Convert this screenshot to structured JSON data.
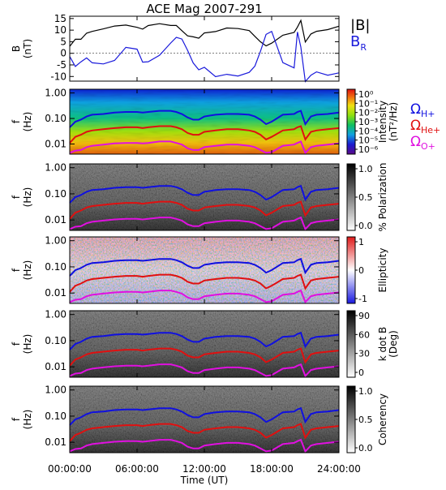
{
  "title": "ACE Mag 2007-291",
  "x_axis": {
    "label": "Time (UT)",
    "ticks": [
      "00:00:00",
      "06:00:00",
      "12:00:00",
      "18:00:00",
      "24:00:00"
    ],
    "tick_hours": [
      0,
      6,
      12,
      18,
      24
    ],
    "range_hours": [
      0,
      24
    ]
  },
  "legend": {
    "B_label": "|B|",
    "BR_label": "B",
    "BR_sub": "R",
    "H_label": "Ω",
    "H_sub": "H+",
    "He_label": "Ω",
    "He_sub": "He+",
    "O_label": "Ω",
    "O_sub": "O+"
  },
  "colors": {
    "B": "#000000",
    "BR": "#1a1adb",
    "H": "#1010e0",
    "He": "#e01010",
    "O": "#e010e0"
  },
  "panels": [
    {
      "id": "mag",
      "ylabel": "B",
      "yunit": "(nT)",
      "yticks": [
        "15",
        "10",
        "5",
        "0",
        "-5",
        "-10"
      ],
      "ytick_values": [
        15,
        10,
        5,
        0,
        -5,
        -10
      ],
      "yrange": [
        -12,
        16
      ]
    },
    {
      "id": "intensity",
      "ylabel": "f",
      "yunit": "(Hz)",
      "yticks": [
        "1.00",
        "0.10",
        "0.01"
      ],
      "cbar_label": "Intensity",
      "cbar_unit": "(nT²/Hz)",
      "cbar_ticks": [
        "10⁰",
        "10⁻¹",
        "10⁻²",
        "10⁻³",
        "10⁻⁴",
        "10⁻⁵",
        "10⁻⁶"
      ],
      "cmap": "rainbow"
    },
    {
      "id": "polarization",
      "ylabel": "f",
      "yunit": "(Hz)",
      "yticks": [
        "1.00",
        "0.10",
        "0.01"
      ],
      "cbar_label": "% Polarization",
      "cbar_ticks": [
        "1.0",
        "0.5",
        "0.0"
      ],
      "cmap": "gray"
    },
    {
      "id": "ellipticity",
      "ylabel": "f",
      "yunit": "(Hz)",
      "yticks": [
        "1.00",
        "0.10",
        "0.01"
      ],
      "cbar_label": "Ellipticity",
      "cbar_ticks": [
        "1",
        "0",
        "-1"
      ],
      "cmap": "bwr"
    },
    {
      "id": "kdotb",
      "ylabel": "f",
      "yunit": "(Hz)",
      "yticks": [
        "1.00",
        "0.10",
        "0.01"
      ],
      "cbar_label": "k dot B",
      "cbar_unit": "(Deg)",
      "cbar_ticks": [
        "90",
        "60",
        "30",
        "0"
      ],
      "cmap": "gray"
    },
    {
      "id": "coherency",
      "ylabel": "f",
      "yunit": "(Hz)",
      "yticks": [
        "1.00",
        "0.10",
        "0.01"
      ],
      "cbar_label": "Coherency",
      "cbar_ticks": [
        "1.0",
        "0.5",
        "0.0"
      ],
      "cmap": "gray"
    }
  ],
  "chart_data": {
    "type": "line",
    "title": "ACE Mag 2007-291",
    "xlabel": "Time (UT)",
    "xlim_hours": [
      0,
      24
    ],
    "panels": [
      {
        "panel": "mag",
        "ylabel": "B (nT)",
        "ylim": [
          -12,
          16
        ],
        "series": [
          {
            "name": "|B|",
            "x_hours": [
              0,
              0.5,
              1,
              1.5,
              2,
              3,
              4,
              5,
              6,
              6.5,
              7,
              8,
              9,
              9.5,
              10,
              10.5,
              11,
              11.5,
              12,
              13,
              14,
              15,
              16,
              16.5,
              17,
              17.5,
              18,
              19,
              20,
              20.3,
              20.6,
              21,
              21.5,
              22,
              23,
              24
            ],
            "values": [
              3,
              5,
              6,
              8,
              9,
              10,
              11,
              12,
              12,
              11,
              12,
              13,
              13,
              12,
              10,
              7,
              6,
              6,
              8,
              9,
              10,
              10,
              9,
              8,
              6,
              4,
              5,
              9,
              10,
              12,
              13,
              4,
              8,
              9,
              10,
              11
            ]
          },
          {
            "name": "B_R",
            "x_hours": [
              0,
              0.5,
              1,
              1.5,
              2,
              3,
              4,
              5,
              6,
              6.5,
              7,
              8,
              9,
              9.5,
              10,
              10.5,
              11,
              11.5,
              12,
              13,
              14,
              15,
              16,
              16.5,
              17,
              17.5,
              18,
              19,
              20,
              20.3,
              20.6,
              21,
              21.5,
              22,
              23,
              24
            ],
            "values": [
              -2,
              -5,
              -3,
              -1,
              -3,
              -4,
              -2,
              3,
              1,
              -5,
              -4,
              -2,
              4,
              6,
              5,
              2,
              -4,
              -7,
              -6,
              -9,
              -9,
              -9,
              -8,
              -6,
              0,
              7,
              9,
              -5,
              -7,
              8,
              3,
              -11,
              -9,
              -8,
              -9,
              -8
            ]
          }
        ]
      },
      {
        "panel": "spectra",
        "ylabel": "f (Hz)",
        "yscale": "log",
        "ylim": [
          0.004,
          1.4
        ],
        "series": [
          {
            "name": "Ω_H+",
            "x_hours": [
              0,
              0.5,
              1,
              1.5,
              2,
              3,
              4,
              5,
              6,
              6.5,
              7,
              8,
              9,
              9.5,
              10,
              10.5,
              11,
              11.5,
              12,
              13,
              14,
              15,
              16,
              16.5,
              17,
              17.5,
              18,
              19,
              20,
              20.3,
              20.6,
              21,
              21.5,
              22,
              23,
              24
            ],
            "values": [
              0.045,
              0.075,
              0.09,
              0.12,
              0.14,
              0.15,
              0.17,
              0.18,
              0.18,
              0.17,
              0.18,
              0.2,
              0.2,
              0.18,
              0.15,
              0.11,
              0.09,
              0.09,
              0.12,
              0.14,
              0.15,
              0.15,
              0.14,
              0.12,
              0.09,
              0.06,
              0.075,
              0.14,
              0.15,
              0.18,
              0.2,
              0.06,
              0.12,
              0.14,
              0.15,
              0.17
            ]
          },
          {
            "name": "Ω_He+",
            "x_hours": [
              0,
              0.5,
              1,
              1.5,
              2,
              3,
              4,
              5,
              6,
              6.5,
              7,
              8,
              9,
              9.5,
              10,
              10.5,
              11,
              11.5,
              12,
              13,
              14,
              15,
              16,
              16.5,
              17,
              17.5,
              18,
              19,
              20,
              20.3,
              20.6,
              21,
              21.5,
              22,
              23,
              24
            ],
            "values": [
              0.011,
              0.019,
              0.023,
              0.03,
              0.034,
              0.038,
              0.042,
              0.045,
              0.045,
              0.042,
              0.045,
              0.05,
              0.05,
              0.045,
              0.038,
              0.027,
              0.023,
              0.023,
              0.03,
              0.034,
              0.038,
              0.038,
              0.034,
              0.03,
              0.023,
              0.015,
              0.019,
              0.034,
              0.038,
              0.045,
              0.05,
              0.015,
              0.03,
              0.034,
              0.038,
              0.042
            ]
          },
          {
            "name": "Ω_O+",
            "x_hours": [
              0,
              0.5,
              1,
              1.5,
              2,
              3,
              4,
              5,
              6,
              6.5,
              7,
              8,
              9,
              9.5,
              10,
              10.5,
              11,
              11.5,
              12,
              13,
              14,
              15,
              16,
              16.5,
              17,
              17.5,
              18,
              19,
              20,
              20.3,
              20.6,
              21,
              21.5,
              22,
              23,
              24
            ],
            "values": [
              0.0045,
              0.0055,
              0.0058,
              0.0075,
              0.0085,
              0.0095,
              0.0105,
              0.011,
              0.011,
              0.0105,
              0.011,
              0.0125,
              0.0125,
              0.011,
              0.0095,
              0.0068,
              0.0058,
              0.0058,
              0.0075,
              0.0085,
              0.0095,
              0.0095,
              0.0085,
              0.0075,
              0.0058,
              0.0045,
              0.0048,
              0.0085,
              0.0095,
              0.011,
              0.0125,
              0.0045,
              0.0075,
              0.0085,
              0.0095,
              0.0105
            ]
          }
        ]
      }
    ]
  }
}
